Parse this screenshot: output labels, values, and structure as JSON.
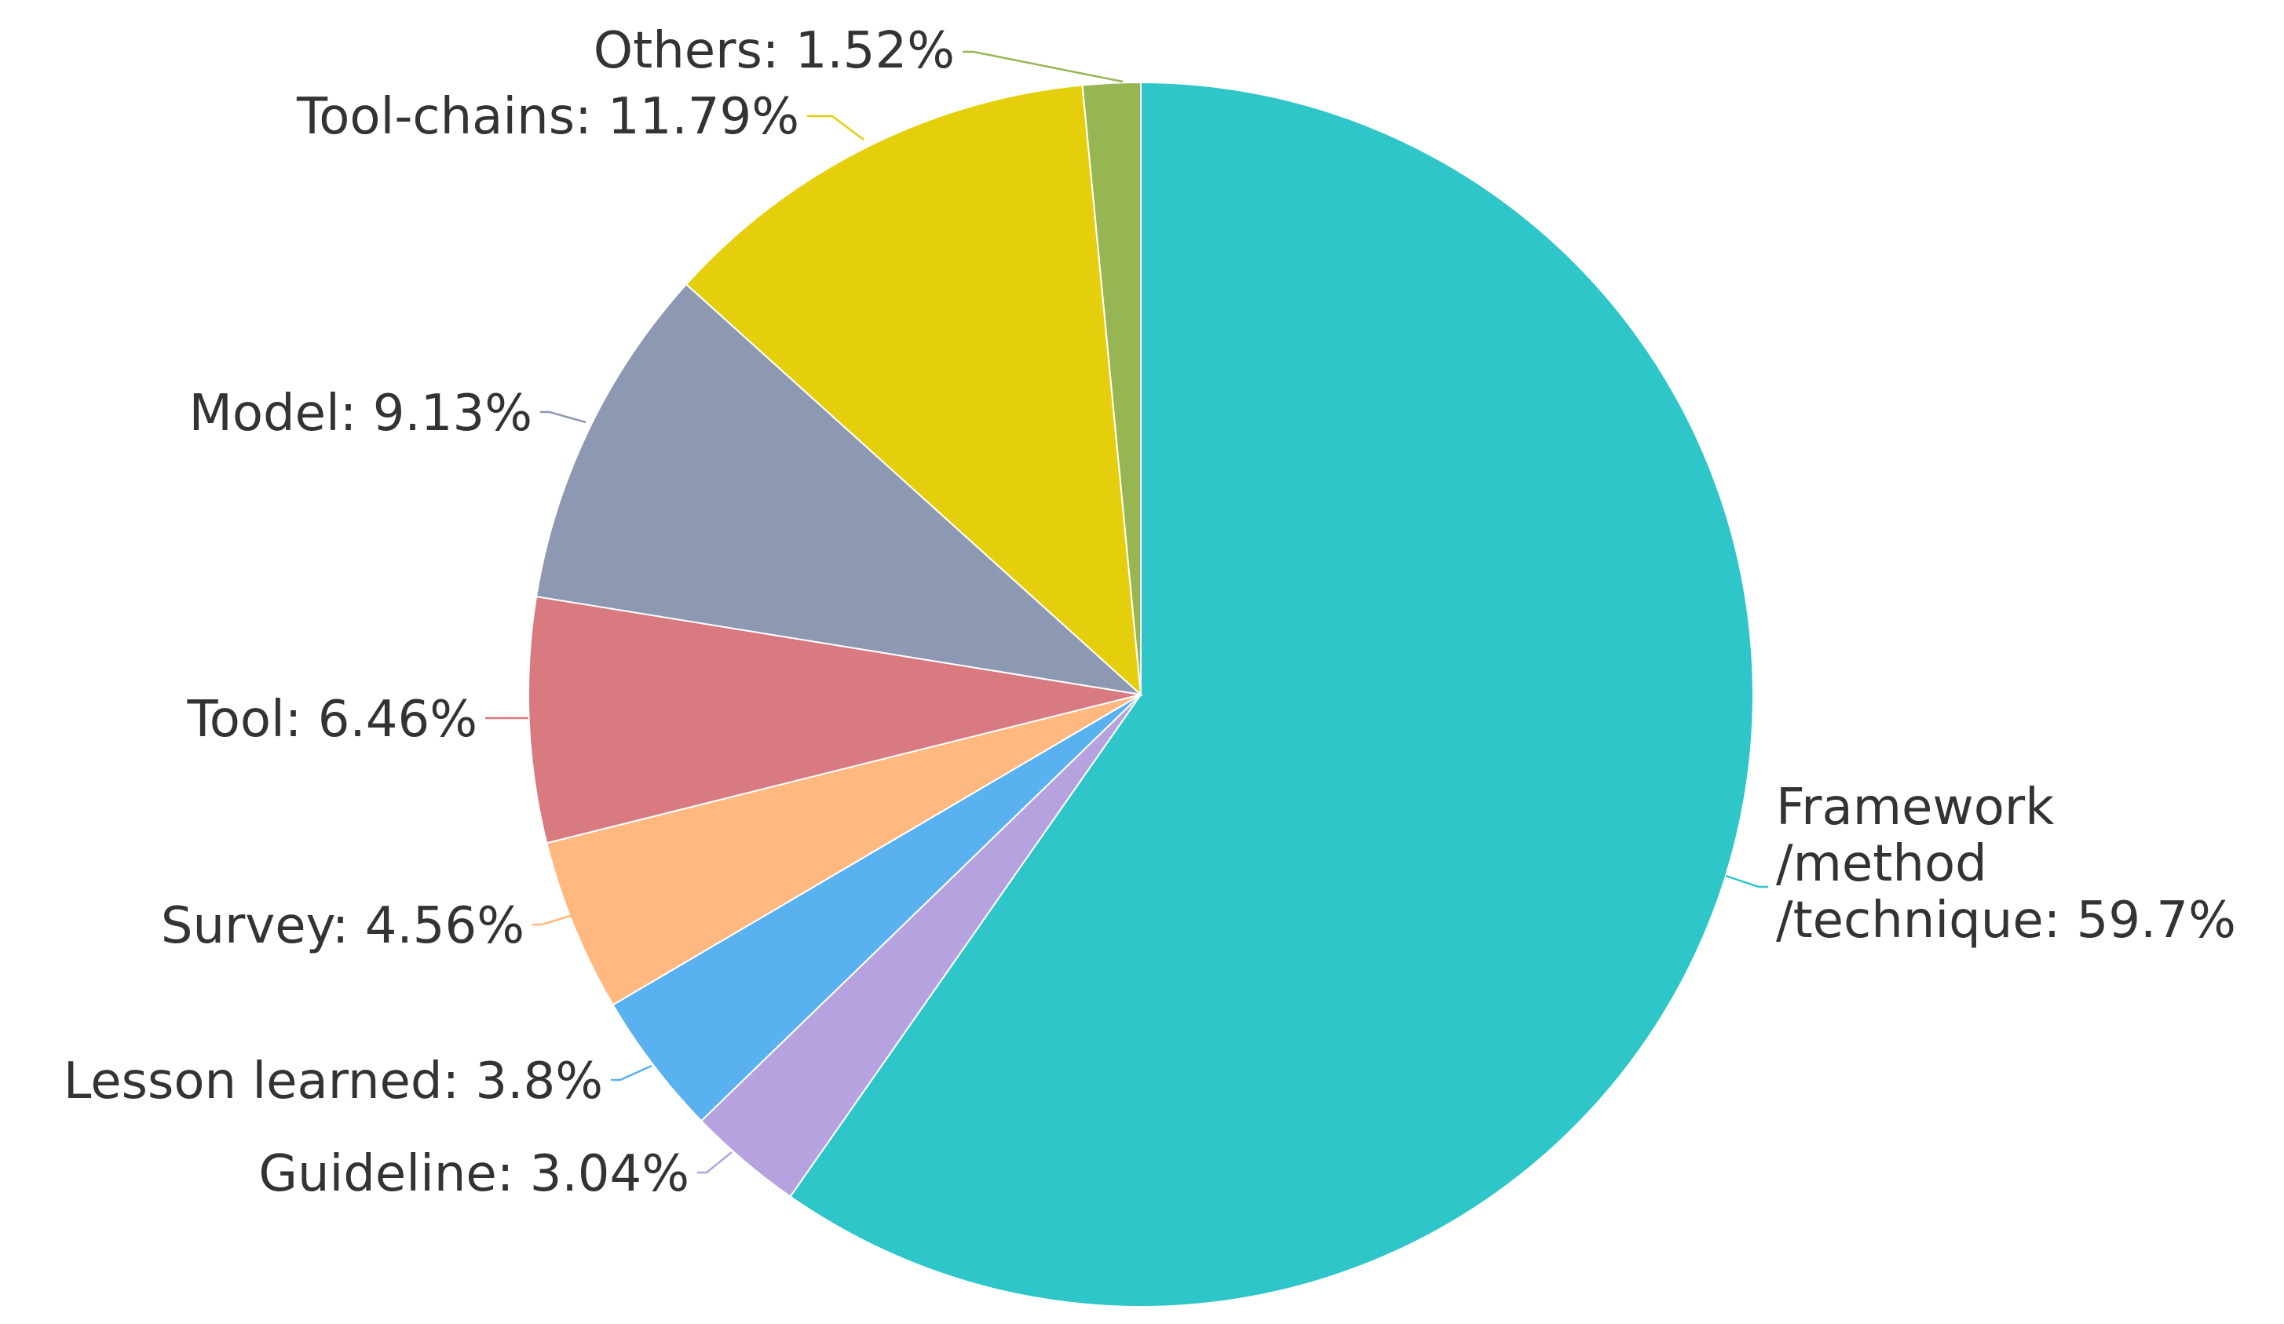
{
  "chart_data": {
    "type": "pie",
    "title": "",
    "start_angle_deg": 0,
    "direction": "clockwise",
    "slices": [
      {
        "label": "Framework\n/method\n/technique",
        "value": 59.7,
        "display": "59.7%",
        "color": "#2ec6c8"
      },
      {
        "label": "Guideline",
        "value": 3.04,
        "display": "3.04%",
        "color": "#b6a2de"
      },
      {
        "label": "Lesson learned",
        "value": 3.8,
        "display": "3.8%",
        "color": "#5ab1ef"
      },
      {
        "label": "Survey",
        "value": 4.56,
        "display": "4.56%",
        "color": "#ffb980"
      },
      {
        "label": "Tool",
        "value": 6.46,
        "display": "6.46%",
        "color": "#d87a80"
      },
      {
        "label": "Model",
        "value": 9.13,
        "display": "9.13%",
        "color": "#8d98b3"
      },
      {
        "label": "Tool-chains",
        "value": 11.79,
        "display": "11.79%",
        "color": "#e5cf0d"
      },
      {
        "label": "Others",
        "value": 1.52,
        "display": "1.52%",
        "color": "#97b552"
      }
    ]
  }
}
